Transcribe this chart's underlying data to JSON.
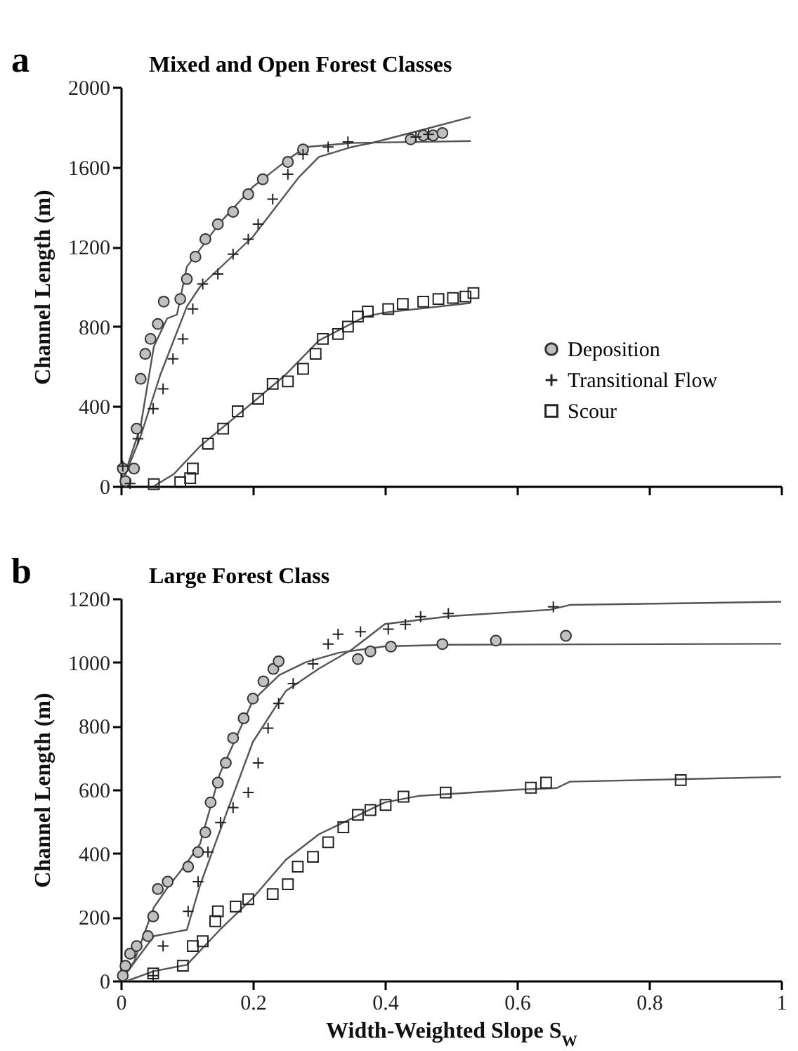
{
  "chart_data": [
    {
      "type": "scatter",
      "title": "Mixed and Open Forest Classes",
      "ylabel": "Channel Length (m)",
      "annotations": [
        "a"
      ],
      "xlim": [
        0,
        1
      ],
      "xticks": [
        0,
        0.2,
        0.4,
        0.6,
        0.8,
        1
      ],
      "ylim": [
        0,
        2000
      ],
      "yticks": [
        0,
        400,
        800,
        1200,
        1600,
        2000
      ],
      "tick_labels": "y",
      "legend": "bottom right",
      "series": [
        {
          "type": "line",
          "color": "#555555",
          "x": [
            0,
            0.03,
            0.05,
            0.07,
            0.085,
            0.1,
            0.15,
            0.2,
            0.25,
            0.28,
            0.35,
            0.53
          ],
          "values": [
            0,
            300,
            700,
            840,
            860,
            1100,
            1320,
            1500,
            1630,
            1700,
            1720,
            1730
          ]
        },
        {
          "type": "line",
          "color": "#555555",
          "x": [
            0,
            0.03,
            0.06,
            0.1,
            0.12,
            0.2,
            0.27,
            0.3,
            0.35,
            0.38,
            0.45,
            0.53
          ],
          "values": [
            0,
            250,
            560,
            900,
            1000,
            1250,
            1550,
            1650,
            1700,
            1720,
            1780,
            1850
          ]
        },
        {
          "type": "line",
          "color": "#555555",
          "x": [
            0.05,
            0.08,
            0.12,
            0.2,
            0.25,
            0.3,
            0.37,
            0.4,
            0.53
          ],
          "values": [
            0,
            60,
            200,
            420,
            560,
            730,
            850,
            870,
            918
          ]
        },
        {
          "type": "scatter",
          "name": "Deposition",
          "marker": "circle",
          "color": "#c0c0c0",
          "x": [
            0.007,
            0.003,
            0.02,
            0.024,
            0.03,
            0.037,
            0.045,
            0.056,
            0.065,
            0.09,
            0.1,
            0.113,
            0.128,
            0.147,
            0.17,
            0.193,
            0.215,
            0.253,
            0.276,
            0.439,
            0.458,
            0.473,
            0.487
          ],
          "values": [
            25,
            88,
            88,
            288,
            538,
            663,
            738,
            813,
            925,
            938,
            1038,
            1150,
            1238,
            1313,
            1375,
            1463,
            1538,
            1625,
            1688,
            1738,
            1758,
            1758,
            1770
          ]
        },
        {
          "type": "scatter",
          "name": "Transitional Flow",
          "marker": "cross",
          "color": "#222222",
          "x": [
            0.014,
            0.003,
            0.026,
            0.049,
            0.064,
            0.079,
            0.094,
            0.109,
            0.124,
            0.147,
            0.17,
            0.193,
            0.208,
            0.23,
            0.253,
            0.276,
            0.314,
            0.344,
            0.447,
            0.466
          ],
          "values": [
            13,
            100,
            238,
            388,
            488,
            638,
            738,
            888,
            1013,
            1063,
            1163,
            1238,
            1313,
            1438,
            1563,
            1663,
            1700,
            1725,
            1750,
            1763
          ]
        },
        {
          "type": "scatter",
          "name": "Scour",
          "marker": "square",
          "color": "#222222",
          "x": [
            0.05,
            0.09,
            0.105,
            0.109,
            0.132,
            0.155,
            0.177,
            0.208,
            0.23,
            0.253,
            0.276,
            0.295,
            0.306,
            0.329,
            0.344,
            0.359,
            0.374,
            0.405,
            0.427,
            0.458,
            0.481,
            0.503,
            0.522,
            0.534
          ],
          "values": [
            10,
            20,
            40,
            88,
            213,
            288,
            375,
            438,
            513,
            525,
            588,
            663,
            738,
            763,
            800,
            850,
            875,
            888,
            913,
            925,
            938,
            943,
            950,
            968
          ]
        }
      ]
    },
    {
      "type": "scatter",
      "title": "Large Forest Class",
      "xlabel": "Width-Weighted Slope S$_{W}$",
      "ylabel": "Channel Length (m)",
      "annotations": [
        "b"
      ],
      "xlim": [
        0,
        1
      ],
      "xticks": [
        0,
        0.2,
        0.4,
        0.6,
        0.8,
        1
      ],
      "ylim": [
        0,
        1200
      ],
      "yticks": [
        0,
        200,
        400,
        600,
        800,
        1000,
        1200
      ],
      "series": [
        {
          "type": "line",
          "color": "#555555",
          "x": [
            0,
            0.02,
            0.05,
            0.07,
            0.1,
            0.12,
            0.15,
            0.2,
            0.24,
            0.28,
            0.33,
            0.4,
            0.5,
            1
          ],
          "values": [
            0,
            60,
            230,
            290,
            370,
            430,
            650,
            880,
            960,
            1000,
            1030,
            1050,
            1055,
            1058
          ]
        },
        {
          "type": "line",
          "color": "#555555",
          "x": [
            0,
            0.05,
            0.1,
            0.12,
            0.15,
            0.2,
            0.25,
            0.3,
            0.35,
            0.4,
            0.5,
            0.65,
            0.68,
            1
          ],
          "values": [
            0,
            140,
            160,
            300,
            470,
            750,
            910,
            980,
            1040,
            1120,
            1145,
            1165,
            1180,
            1190
          ]
        },
        {
          "type": "line",
          "color": "#555555",
          "x": [
            0.01,
            0.05,
            0.1,
            0.15,
            0.2,
            0.25,
            0.3,
            0.35,
            0.4,
            0.45,
            0.6,
            0.66,
            0.68,
            1
          ],
          "values": [
            0,
            30,
            50,
            160,
            260,
            380,
            460,
            510,
            560,
            580,
            600,
            605,
            625,
            640
          ]
        },
        {
          "type": "scatter",
          "marker": "circle",
          "color": "#c0c0c0",
          "x": [
            0.003,
            0.007,
            0.014,
            0.024,
            0.041,
            0.049,
            0.056,
            0.071,
            0.102,
            0.117,
            0.128,
            0.136,
            0.147,
            0.159,
            0.17,
            0.186,
            0.2,
            0.216,
            0.231,
            0.239,
            0.359,
            0.378,
            0.409,
            0.487,
            0.568,
            0.674
          ],
          "values": [
            16,
            47,
            85,
            109,
            140,
            202,
            288,
            311,
            358,
            404,
            466,
            560,
            622,
            684,
            762,
            824,
            886,
            940,
            979,
            1003,
            1010,
            1034,
            1049,
            1057,
            1068,
            1083
          ]
        },
        {
          "type": "scatter",
          "marker": "cross",
          "color": "#222222",
          "x": [
            0.049,
            0.064,
            0.102,
            0.117,
            0.132,
            0.151,
            0.17,
            0.193,
            0.208,
            0.223,
            0.239,
            0.261,
            0.291,
            0.314,
            0.329,
            0.363,
            0.405,
            0.431,
            0.454,
            0.496,
            0.655
          ],
          "values": [
            16,
            109,
            218,
            311,
            404,
            497,
            544,
            591,
            684,
            793,
            871,
            933,
            995,
            1057,
            1088,
            1096,
            1104,
            1119,
            1143,
            1153,
            1174
          ]
        },
        {
          "type": "scatter",
          "marker": "square",
          "color": "#222222",
          "x": [
            0.049,
            0.094,
            0.109,
            0.124,
            0.143,
            0.147,
            0.174,
            0.193,
            0.23,
            0.253,
            0.268,
            0.291,
            0.314,
            0.337,
            0.359,
            0.378,
            0.401,
            0.428,
            0.492,
            0.621,
            0.644,
            0.848
          ],
          "values": [
            23,
            47,
            109,
            124,
            187,
            218,
            233,
            256,
            272,
            303,
            358,
            389,
            435,
            482,
            521,
            536,
            552,
            578,
            591,
            606,
            622,
            630
          ]
        }
      ]
    }
  ]
}
